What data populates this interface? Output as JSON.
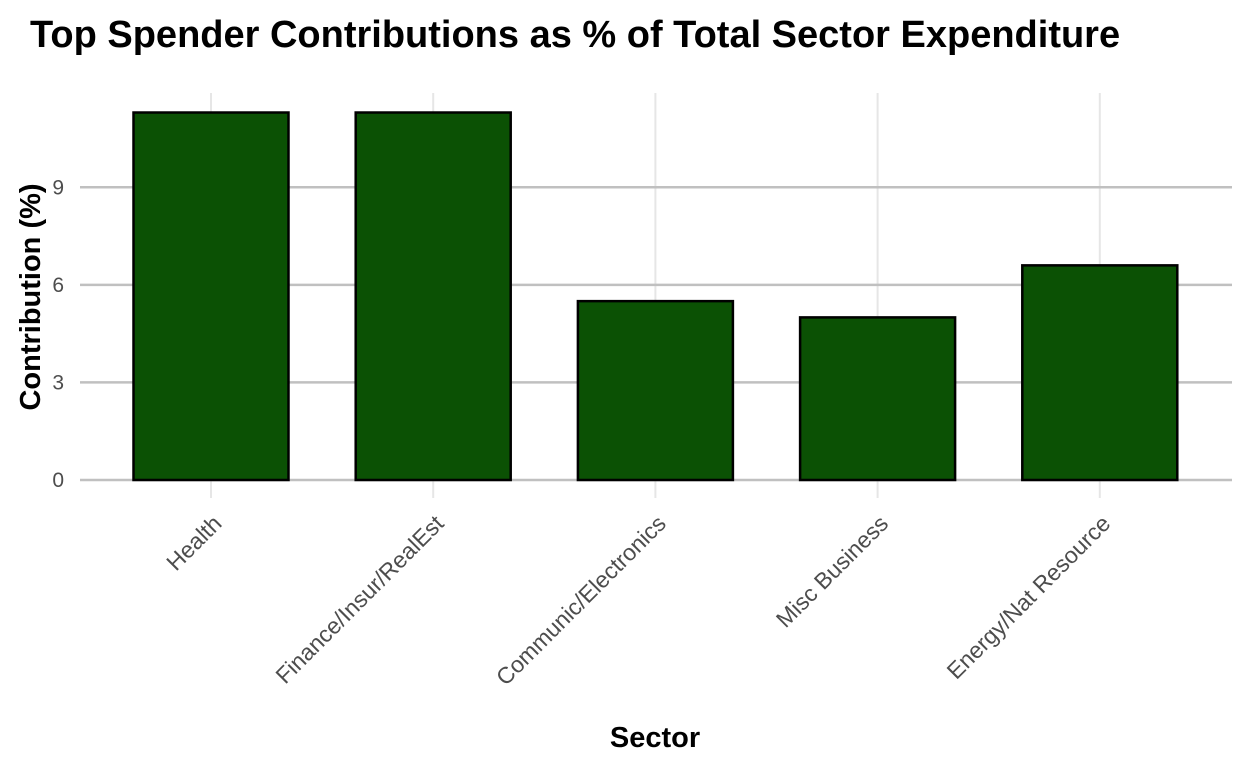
{
  "chart_data": {
    "type": "bar",
    "title": "Top Spender Contributions as % of Total Sector Expenditure",
    "xlabel": "Sector",
    "ylabel": "Contribution (%)",
    "categories": [
      "Health",
      "Finance/Insur/RealEst",
      "Communic/Electronics",
      "Misc Business",
      "Energy/Nat Resource"
    ],
    "values": [
      11.3,
      11.3,
      5.5,
      5.0,
      6.6
    ],
    "ylim": [
      0,
      11.9
    ],
    "yticks": [
      "0",
      "3",
      "6",
      "9"
    ],
    "grid": true,
    "legend": "none",
    "bar_color": "#0b5104",
    "bar_outline": "#000000",
    "grid_major_color": "#c0c0c0",
    "grid_minor_color": "#e6e6e6"
  }
}
